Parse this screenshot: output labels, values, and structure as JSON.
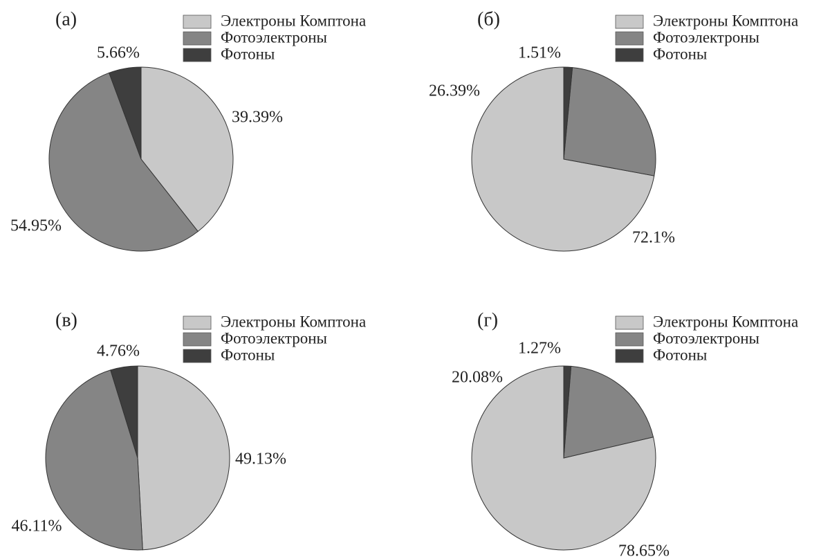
{
  "chart_data": [
    {
      "type": "pie",
      "panel_label": "(а)",
      "legend": [
        "Электроны Комптона",
        "Фотоэлектроны",
        "Фотоны"
      ],
      "colors": [
        "#c8c8c8",
        "#858585",
        "#3e3e3e"
      ],
      "values": [
        39.39,
        54.95,
        5.66
      ],
      "value_labels": [
        "39.39%",
        "54.95%",
        "5.66%"
      ]
    },
    {
      "type": "pie",
      "panel_label": "(б)",
      "legend": [
        "Электроны Комптона",
        "Фотоэлектроны",
        "Фотоны"
      ],
      "colors": [
        "#c8c8c8",
        "#858585",
        "#3e3e3e"
      ],
      "values": [
        72.1,
        26.39,
        1.51
      ],
      "value_labels": [
        "72.1%",
        "26.39%",
        "1.51%"
      ]
    },
    {
      "type": "pie",
      "panel_label": "(в)",
      "legend": [
        "Электроны Комптона",
        "Фотоэлектроны",
        "Фотоны"
      ],
      "colors": [
        "#c8c8c8",
        "#858585",
        "#3e3e3e"
      ],
      "values": [
        49.13,
        46.11,
        4.76
      ],
      "value_labels": [
        "49.13%",
        "46.11%",
        "4.76%"
      ]
    },
    {
      "type": "pie",
      "panel_label": "(г)",
      "legend": [
        "Электроны Комптона",
        "Фотоэлектроны",
        "Фотоны"
      ],
      "colors": [
        "#c8c8c8",
        "#858585",
        "#3e3e3e"
      ],
      "values": [
        78.65,
        20.08,
        1.27
      ],
      "value_labels": [
        "78.65%",
        "20.08%",
        "1.27%"
      ]
    }
  ]
}
